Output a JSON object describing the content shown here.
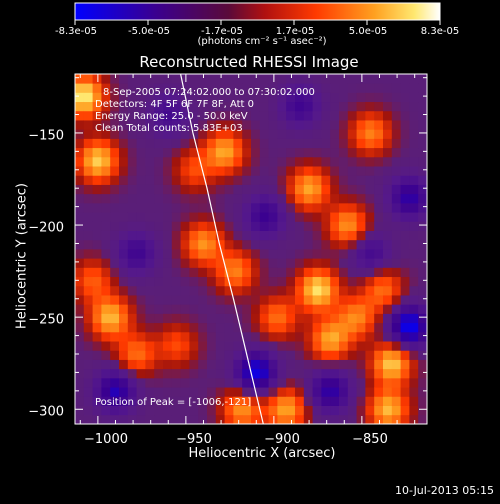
{
  "colorbar": {
    "ticks": [
      "-8.3e-05",
      "-5.0e-05",
      "-1.7e-05",
      "1.7e-05",
      "5.0e-05",
      "8.3e-05"
    ],
    "units_label": "(photons cm⁻² s⁻¹ asec⁻²)"
  },
  "annotations": {
    "time_range": "8-Sep-2005 07:24:02.000 to 07:30:02.000",
    "detectors": "Detectors: 4F 5F 6F 7F 8F, Att 0",
    "energy_range": "Energy Range: 25.0 - 50.0 keV",
    "method": "Clean    Total counts: 5.83E+03",
    "peak": "Position of Peak = [-1006,-121]"
  },
  "footer": {
    "stamp": "10-Jul-2013 05:15"
  },
  "chart_data": {
    "type": "heatmap",
    "title": "Reconstructed RHESSI Image",
    "xlabel": "Heliocentric X (arcsec)",
    "ylabel": "Heliocentric Y (arcsec)",
    "xlim": [
      -1013,
      -813
    ],
    "ylim": [
      -308,
      -118
    ],
    "x_ticks": [
      -1000,
      -950,
      -900,
      -850
    ],
    "y_ticks": [
      -150,
      -200,
      -250,
      -300
    ],
    "x_tick_labels": [
      "−1000",
      "−950",
      "−900",
      "−850"
    ],
    "y_tick_labels": [
      "−150",
      "−200",
      "−250",
      "−300"
    ],
    "colorbar_range": [
      -8.3e-05,
      8.3e-05
    ],
    "colormap": [
      "#0000ff",
      "#2200b0",
      "#4a1aa0",
      "#5a2a90",
      "#a01e0c",
      "#dd2200",
      "#ff5a00",
      "#ff9c12",
      "#ffd94a",
      "#ffffff"
    ],
    "limb_curve": {
      "x": [
        -953,
        -946,
        -938,
        -931,
        -923,
        -915,
        -906
      ],
      "y": [
        -118,
        -150,
        -180,
        -210,
        -240,
        -272,
        -308
      ]
    },
    "features": [
      {
        "x": -1008,
        "y": -130,
        "value": 7.5e-05
      },
      {
        "x": -1000,
        "y": -165,
        "value": 6.5e-05
      },
      {
        "x": -1003,
        "y": -230,
        "value": 3.5e-05
      },
      {
        "x": -993,
        "y": -250,
        "value": 6e-05
      },
      {
        "x": -978,
        "y": -270,
        "value": 4e-05
      },
      {
        "x": -955,
        "y": -265,
        "value": 3e-05
      },
      {
        "x": -945,
        "y": -170,
        "value": 3e-05
      },
      {
        "x": -940,
        "y": -210,
        "value": 5e-05
      },
      {
        "x": -928,
        "y": -160,
        "value": 5.5e-05
      },
      {
        "x": -922,
        "y": -225,
        "value": 4.5e-05
      },
      {
        "x": -918,
        "y": -300,
        "value": 5e-05
      },
      {
        "x": -898,
        "y": -250,
        "value": 4e-05
      },
      {
        "x": -893,
        "y": -300,
        "value": 5.5e-05
      },
      {
        "x": -880,
        "y": -180,
        "value": 5.5e-05
      },
      {
        "x": -875,
        "y": -235,
        "value": 7e-05
      },
      {
        "x": -868,
        "y": -262,
        "value": 5.5e-05
      },
      {
        "x": -858,
        "y": -200,
        "value": 5e-05
      },
      {
        "x": -853,
        "y": -250,
        "value": 4.5e-05
      },
      {
        "x": -845,
        "y": -150,
        "value": 4.5e-05
      },
      {
        "x": -838,
        "y": -235,
        "value": 4e-05
      },
      {
        "x": -833,
        "y": -275,
        "value": 6.5e-05
      },
      {
        "x": -835,
        "y": -300,
        "value": 6e-05
      },
      {
        "x": -960,
        "y": -140,
        "value": -3.5e-05
      },
      {
        "x": -978,
        "y": -215,
        "value": -4e-05
      },
      {
        "x": -990,
        "y": -290,
        "value": -6e-05
      },
      {
        "x": -910,
        "y": -280,
        "value": -7.5e-05
      },
      {
        "x": -885,
        "y": -135,
        "value": -4e-05
      },
      {
        "x": -868,
        "y": -290,
        "value": -5.5e-05
      },
      {
        "x": -823,
        "y": -255,
        "value": -8e-05
      },
      {
        "x": -823,
        "y": -185,
        "value": -5.5e-05
      },
      {
        "x": -905,
        "y": -195,
        "value": -4.5e-05
      },
      {
        "x": -845,
        "y": -215,
        "value": -3.5e-05
      }
    ]
  }
}
